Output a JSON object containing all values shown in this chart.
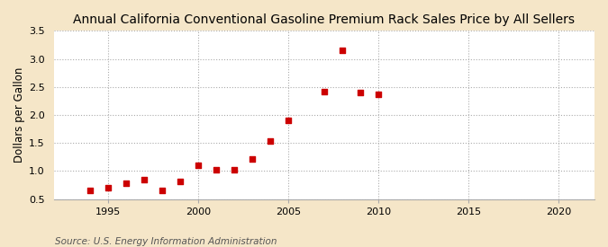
{
  "title": "Annual California Conventional Gasoline Premium Rack Sales Price by All Sellers",
  "ylabel": "Dollars per Gallon",
  "source": "Source: U.S. Energy Information Administration",
  "fig_background_color": "#f5e6c8",
  "plot_background_color": "#ffffff",
  "marker_color": "#cc0000",
  "years": [
    1994,
    1995,
    1996,
    1997,
    1998,
    1999,
    2000,
    2001,
    2002,
    2003,
    2004,
    2005,
    2007,
    2008,
    2009,
    2010
  ],
  "values": [
    0.65,
    0.7,
    0.78,
    0.85,
    0.65,
    0.81,
    1.11,
    1.02,
    1.02,
    1.21,
    1.53,
    1.9,
    2.41,
    3.15,
    2.4,
    2.37
  ],
  "xlim": [
    1992,
    2022
  ],
  "ylim": [
    0.5,
    3.5
  ],
  "yticks": [
    0.5,
    1.0,
    1.5,
    2.0,
    2.5,
    3.0,
    3.5
  ],
  "xticks": [
    1995,
    2000,
    2005,
    2010,
    2015,
    2020
  ],
  "title_fontsize": 10,
  "label_fontsize": 8.5,
  "tick_fontsize": 8,
  "source_fontsize": 7.5
}
